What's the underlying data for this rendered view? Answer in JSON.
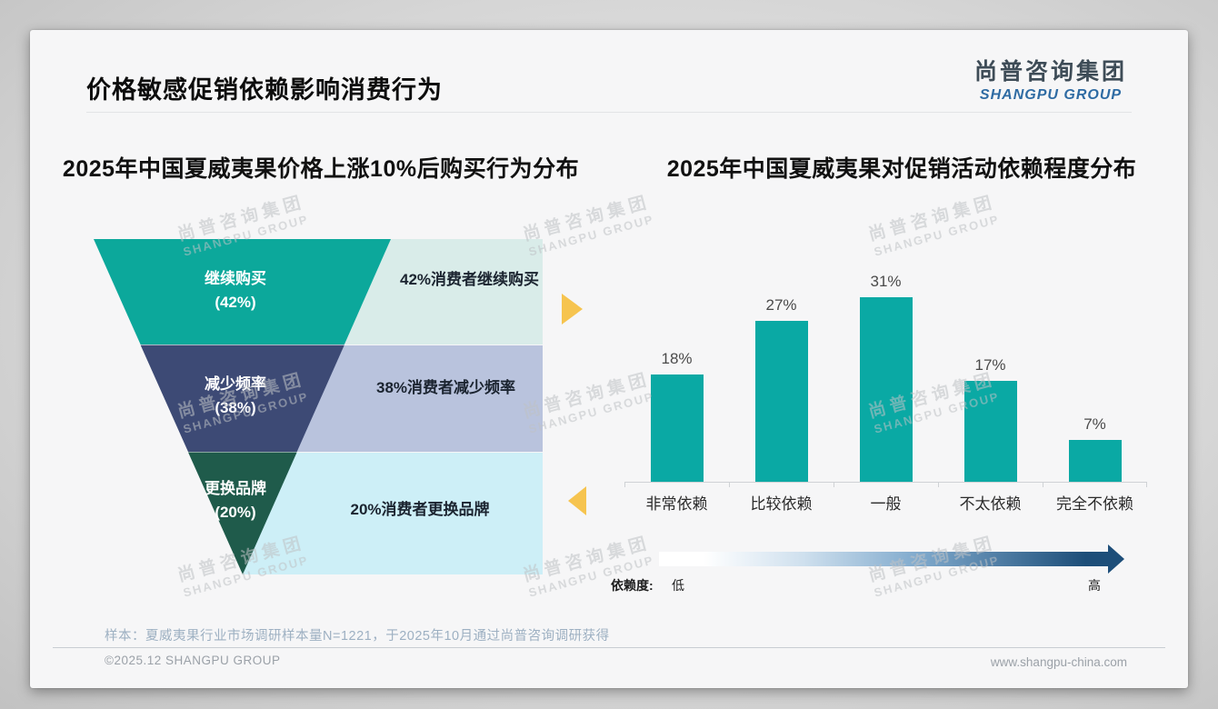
{
  "page": {
    "title": "价格敏感促销依赖影响消费行为",
    "logo": {
      "cn": "尚普咨询集团",
      "en": "SHANGPU GROUP"
    },
    "watermark": {
      "cn": "尚普咨询集团",
      "en": "SHANGPU GROUP"
    },
    "sample_note": "样本：夏威夷果行业市场调研样本量N=1221，于2025年10月通过尚普咨询调研获得",
    "footer": {
      "copyright": "©2025.12 SHANGPU GROUP",
      "website": "www.shangpu-china.com"
    }
  },
  "chart_data": [
    {
      "type": "funnel",
      "title": "2025年中国夏威夷果价格上涨10%后购买行为分布",
      "unit": "%",
      "segments": [
        {
          "name": "继续购买",
          "value": 42,
          "value_label": "(42%)",
          "note": "42%消费者继续购买"
        },
        {
          "name": "减少频率",
          "value": 38,
          "value_label": "(38%)",
          "note": "38%消费者减少频率"
        },
        {
          "name": "更换品牌",
          "value": 20,
          "value_label": "(20%)",
          "note": "20%消费者更换品牌"
        }
      ],
      "colors": [
        "#0ca89b",
        "#3d4a75",
        "#1f5b4b"
      ],
      "note_bg": [
        "#d9ece9",
        "#b9c3dd",
        "#cdeff7"
      ],
      "pointer_color": "#f6c44f"
    },
    {
      "type": "bar",
      "title": "2025年中国夏威夷果对促销活动依赖程度分布",
      "categories": [
        "非常依赖",
        "比较依赖",
        "一般",
        "不太依赖",
        "完全不依赖"
      ],
      "values": [
        18,
        27,
        31,
        17,
        7
      ],
      "value_labels": [
        "18%",
        "27%",
        "31%",
        "17%",
        "7%"
      ],
      "ylim": [
        0,
        33
      ],
      "grid": false,
      "bar_color": "#0aa9a4",
      "dependence_legend": {
        "label": "依赖度:",
        "low": "低",
        "high": "高"
      },
      "gradient": [
        "#ffffff",
        "#cfe0ee",
        "#7fa9cc",
        "#1d4e79"
      ]
    }
  ]
}
